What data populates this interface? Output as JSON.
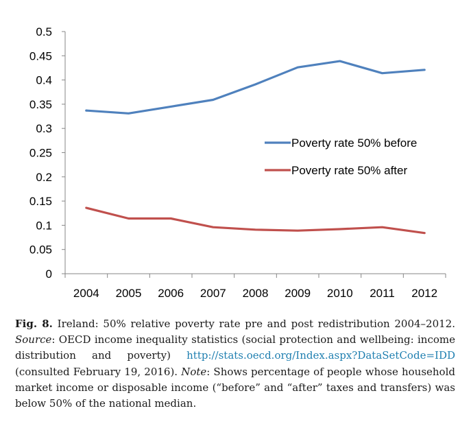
{
  "chart_data": {
    "type": "line",
    "x": [
      "2004",
      "2005",
      "2006",
      "2007",
      "2008",
      "2009",
      "2010",
      "2011",
      "2012"
    ],
    "series": [
      {
        "name": "Poverty rate 50% before",
        "color": "#4f81bd",
        "values": [
          0.337,
          0.331,
          0.345,
          0.359,
          0.391,
          0.426,
          0.439,
          0.414,
          0.421
        ]
      },
      {
        "name": "Poverty rate 50% after",
        "color": "#c0504d",
        "values": [
          0.136,
          0.114,
          0.114,
          0.096,
          0.091,
          0.089,
          0.092,
          0.096,
          0.084
        ]
      }
    ],
    "ylim": [
      0,
      0.5
    ],
    "yticks": [
      "0",
      "0.05",
      "0.1",
      "0.15",
      "0.2",
      "0.25",
      "0.3",
      "0.35",
      "0.4",
      "0.45",
      "0.5"
    ],
    "grid": false,
    "legend_position": "right-middle"
  },
  "caption": {
    "fig_label": "Fig. 8.",
    "title": "Ireland: 50% relative poverty rate pre and post redistribution 2004–2012.",
    "source_label": "Source",
    "source_text": ": OECD income inequality statistics (social protection and wellbeing: income distribution and poverty)",
    "link": "http://stats.oecd.org/Index.aspx?DataSetCode=IDD",
    "consulted": "(consulted February 19, 2016).",
    "note_label": "Note",
    "note_text": ": Shows percentage of people whose household market income or disposable income (“before” and “after” taxes and transfers) was below 50% of the national median."
  }
}
